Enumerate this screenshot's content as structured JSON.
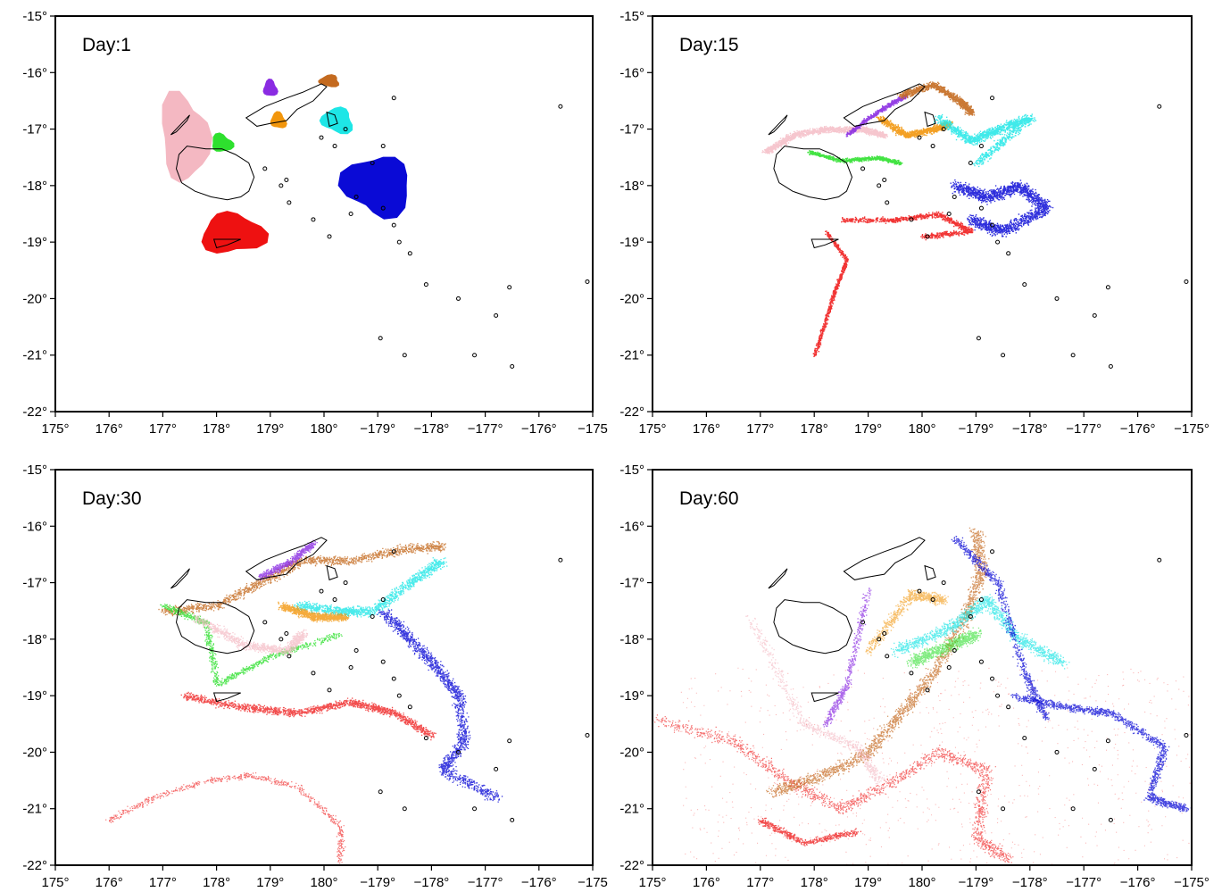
{
  "figure": {
    "colors": {
      "pink": "#f4b8c2",
      "purple": "#8a2be2",
      "brown": "#c46a1f",
      "orange": "#f2960c",
      "cyan": "#1ee6e6",
      "green": "#2ee02e",
      "blue": "#0a0ad6",
      "red": "#ee1111"
    },
    "axes": {
      "x_ticks": [
        "175°",
        "176°",
        "177°",
        "178°",
        "179°",
        "180°",
        "−179°",
        "−178°",
        "−177°",
        "−176°",
        "−175"
      ],
      "x_ticks_right": [
        "175°",
        "176°",
        "177°",
        "178°",
        "179°",
        "180°",
        "−179°",
        "−178°",
        "−177°",
        "−176°",
        "−175°"
      ],
      "y_ticks": [
        "-15°",
        "-16°",
        "-17°",
        "-18°",
        "-19°",
        "-20°",
        "-21°",
        "-22°"
      ],
      "lon_range": [
        175,
        185
      ],
      "lat_range": [
        -22,
        -15
      ]
    },
    "panels": [
      {
        "name": "day-1",
        "label": "Day:1",
        "x_ticks_key": "x_ticks"
      },
      {
        "name": "day-15",
        "label": "Day:15",
        "x_ticks_key": "x_ticks_right"
      },
      {
        "name": "day-30",
        "label": "Day:30",
        "x_ticks_key": "x_ticks"
      },
      {
        "name": "day-60",
        "label": "Day:60",
        "x_ticks_key": "x_ticks_right"
      }
    ]
  }
}
